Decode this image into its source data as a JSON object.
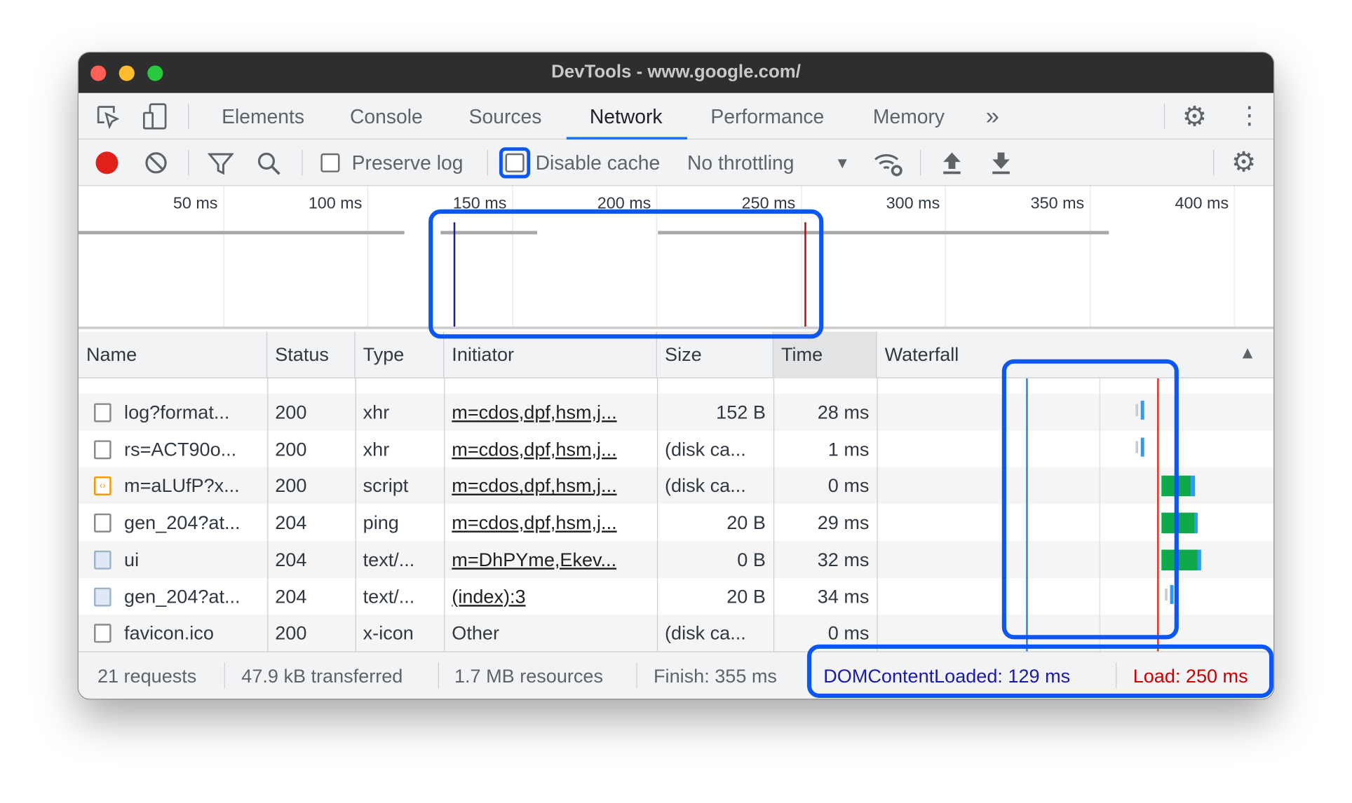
{
  "window": {
    "title": "DevTools - www.google.com/"
  },
  "tabs": [
    {
      "label": "Elements"
    },
    {
      "label": "Console"
    },
    {
      "label": "Sources"
    },
    {
      "label": "Network",
      "active": true
    },
    {
      "label": "Performance"
    },
    {
      "label": "Memory"
    }
  ],
  "tabs_more": "»",
  "toolbar": {
    "preserve_log": "Preserve log",
    "preserve_log_checked": false,
    "disable_cache": "Disable cache",
    "disable_cache_checked": false,
    "throttling": "No throttling"
  },
  "overview": {
    "ticks": [
      "50 ms",
      "100 ms",
      "150 ms",
      "200 ms",
      "250 ms",
      "300 ms",
      "350 ms",
      "400 ms"
    ],
    "dom_content_loaded_ms": 129,
    "load_ms": 250
  },
  "columns": [
    "Name",
    "Status",
    "Type",
    "Initiator",
    "Size",
    "Time",
    "Waterfall"
  ],
  "rows": [
    {
      "icon": "document-icon",
      "name": "log?format...",
      "status": "200",
      "type": "xhr",
      "initiator": "m=cdos,dpf,hsm,j...",
      "initiator_link": true,
      "size": "152 B",
      "time": "28 ms"
    },
    {
      "icon": "document-icon",
      "name": "rs=ACT90o...",
      "status": "200",
      "type": "xhr",
      "initiator": "m=cdos,dpf,hsm,j...",
      "initiator_link": true,
      "size": "(disk ca...",
      "time": "1 ms"
    },
    {
      "icon": "script-icon",
      "name": "m=aLUfP?x...",
      "status": "200",
      "type": "script",
      "initiator": "m=cdos,dpf,hsm,j...",
      "initiator_link": true,
      "size": "(disk ca...",
      "time": "0 ms"
    },
    {
      "icon": "document-icon",
      "name": "gen_204?at...",
      "status": "204",
      "type": "ping",
      "initiator": "m=cdos,dpf,hsm,j...",
      "initiator_link": true,
      "size": "20 B",
      "time": "29 ms"
    },
    {
      "icon": "image-icon",
      "name": "ui",
      "status": "204",
      "type": "text/...",
      "initiator": "m=DhPYme,Ekev...",
      "initiator_link": true,
      "size": "0 B",
      "time": "32 ms"
    },
    {
      "icon": "image-icon",
      "name": "gen_204?at...",
      "status": "204",
      "type": "text/...",
      "initiator": "(index):3",
      "initiator_link": true,
      "size": "20 B",
      "time": "34 ms"
    },
    {
      "icon": "document-icon",
      "name": "favicon.ico",
      "status": "200",
      "type": "x-icon",
      "initiator": "Other",
      "initiator_link": false,
      "size": "(disk ca...",
      "time": "0 ms"
    }
  ],
  "footer": {
    "requests": "21 requests",
    "transferred": "47.9 kB transferred",
    "resources": "1.7 MB resources",
    "finish": "Finish: 355 ms",
    "dcl": "DOMContentLoaded: 129 ms",
    "load": "Load: 250 ms"
  },
  "colors": {
    "accent": "#1a73e8",
    "highlight": "#0b57f5",
    "dcl": "#1a1aa6",
    "load": "#c80000",
    "record": "#e0201b",
    "bar_green": "#0fa84a",
    "bar_blue": "#2a9df4"
  }
}
